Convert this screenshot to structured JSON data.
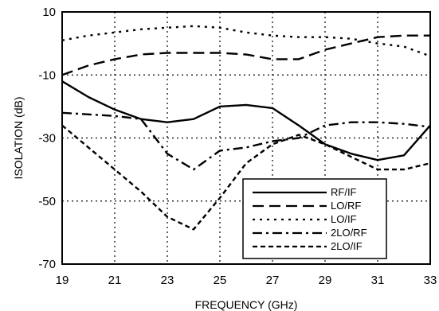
{
  "chart_data": {
    "type": "line",
    "title": "",
    "xlabel": "FREQUENCY (GHz)",
    "ylabel": "ISOLATION (dB)",
    "xlim": [
      19,
      33
    ],
    "ylim": [
      -70,
      10
    ],
    "x_ticks": [
      19,
      21,
      23,
      25,
      27,
      29,
      31,
      33
    ],
    "y_ticks": [
      10,
      -10,
      -30,
      -50,
      -70
    ],
    "grid": true,
    "grid_style": "dotted",
    "legend_position": "bottom-right",
    "series": [
      {
        "name": "RF/IF",
        "style": "solid",
        "x": [
          19,
          20,
          21,
          22,
          23,
          24,
          25,
          26,
          27,
          28,
          29,
          30,
          31,
          32,
          33
        ],
        "y": [
          -12,
          -17,
          -21,
          -24,
          -25,
          -24,
          -20,
          -19.5,
          -20.5,
          -26,
          -32,
          -35,
          -37,
          -35.5,
          -26
        ]
      },
      {
        "name": "LO/RF",
        "style": "dashed",
        "x": [
          19,
          20,
          21,
          22,
          23,
          24,
          25,
          26,
          27,
          28,
          29,
          30,
          31,
          32,
          33
        ],
        "y": [
          -10,
          -7,
          -5,
          -3.5,
          -3,
          -3,
          -3,
          -3.5,
          -5,
          -5,
          -2,
          0,
          2,
          2.5,
          2.5
        ]
      },
      {
        "name": "LO/IF",
        "style": "dotted",
        "x": [
          19,
          20,
          21,
          22,
          23,
          24,
          25,
          26,
          27,
          28,
          29,
          30,
          31,
          32,
          33
        ],
        "y": [
          1,
          2.5,
          3.5,
          4.5,
          5,
          5.5,
          5,
          3.5,
          2.5,
          2,
          2,
          1.5,
          0,
          -1,
          -4
        ]
      },
      {
        "name": "2LO/RF",
        "style": "dashdot",
        "x": [
          19,
          20,
          21,
          22,
          23,
          24,
          25,
          26,
          27,
          28,
          29,
          30,
          31,
          32,
          33
        ],
        "y": [
          -22,
          -22.5,
          -23,
          -24,
          -35,
          -40,
          -34,
          -33,
          -31,
          -30,
          -26,
          -25,
          -25,
          -25.5,
          -26.5
        ]
      },
      {
        "name": "2LO/IF",
        "style": "shortdash",
        "x": [
          19,
          20,
          21,
          22,
          23,
          24,
          25,
          26,
          27,
          28,
          29,
          30,
          31,
          32,
          33
        ],
        "y": [
          -26,
          -33,
          -40,
          -47,
          -55,
          -59,
          -49,
          -38,
          -32,
          -29,
          -32,
          -36,
          -40,
          -40,
          -38
        ]
      }
    ]
  }
}
